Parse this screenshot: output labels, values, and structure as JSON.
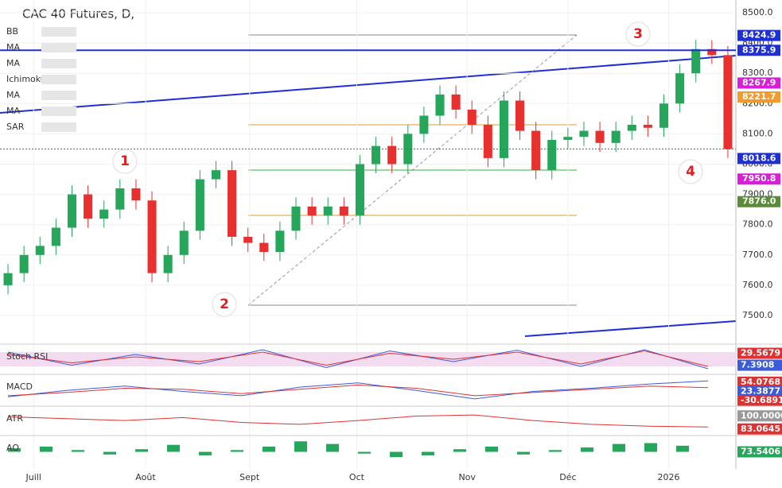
{
  "chart_data": {
    "type": "candlestick",
    "title": "CAC 40 Futures, D,",
    "indicators": [
      "BB",
      "MA",
      "MA",
      "Ichimoku",
      "MA",
      "MA",
      "SAR"
    ],
    "annotations": [
      "1",
      "2",
      "3",
      "4"
    ],
    "x": [
      0,
      1,
      2,
      3,
      4,
      5,
      6,
      7,
      8,
      9,
      10,
      11,
      12,
      13,
      14,
      15,
      16,
      17,
      18,
      19,
      20,
      21,
      22,
      23,
      24,
      25,
      26,
      27,
      28,
      29,
      30,
      31,
      32,
      33,
      34,
      35,
      36,
      37,
      38,
      39,
      40,
      41,
      42,
      43,
      44,
      45
    ],
    "open": [
      7600,
      7640,
      7700,
      7730,
      7790,
      7900,
      7820,
      7850,
      7920,
      7880,
      7640,
      7700,
      7780,
      7950,
      7980,
      7760,
      7740,
      7710,
      7780,
      7860,
      7830,
      7860,
      7830,
      8000,
      8060,
      8000,
      8100,
      8160,
      8230,
      8180,
      8130,
      8020,
      8210,
      8110,
      7980,
      8080,
      8090,
      8110,
      8070,
      8110,
      8130,
      8120,
      8200,
      8300,
      8380,
      8360
    ],
    "high": [
      7670,
      7730,
      7760,
      7820,
      7930,
      7930,
      7880,
      7950,
      7950,
      7910,
      7730,
      7810,
      7980,
      8010,
      8010,
      7790,
      7770,
      7810,
      7890,
      7890,
      7890,
      7890,
      8030,
      8090,
      8090,
      8130,
      8190,
      8260,
      8260,
      8210,
      8160,
      8240,
      8240,
      8140,
      8110,
      8120,
      8140,
      8140,
      8140,
      8160,
      8160,
      8230,
      8330,
      8410,
      8410,
      8390
    ],
    "low": [
      7570,
      7610,
      7670,
      7700,
      7760,
      7790,
      7790,
      7820,
      7850,
      7610,
      7610,
      7670,
      7750,
      7920,
      7730,
      7710,
      7680,
      7680,
      7750,
      7800,
      7800,
      7800,
      7800,
      7970,
      7970,
      7970,
      8070,
      8130,
      8150,
      8100,
      7990,
      7990,
      8080,
      7950,
      7950,
      8050,
      8060,
      8040,
      8040,
      8080,
      8090,
      8090,
      8170,
      8270,
      8330,
      8020
    ],
    "close": [
      7640,
      7700,
      7730,
      7790,
      7900,
      7820,
      7850,
      7920,
      7880,
      7640,
      7700,
      7780,
      7950,
      7980,
      7760,
      7740,
      7710,
      7780,
      7860,
      7830,
      7860,
      7830,
      8000,
      8060,
      8000,
      8100,
      8160,
      8230,
      8180,
      8130,
      8020,
      8210,
      8110,
      7980,
      8080,
      8090,
      8110,
      8070,
      8110,
      8130,
      8120,
      8200,
      8300,
      8380,
      8360,
      8050
    ],
    "up_color": "#26a65b",
    "down_color": "#e8312f",
    "xlim": [
      -0.5,
      45.5
    ],
    "xticks": [
      {
        "value": 1.6,
        "label": "Juill"
      },
      {
        "value": 8.6,
        "label": "Août"
      },
      {
        "value": 15.1,
        "label": "Sept"
      },
      {
        "value": 21.8,
        "label": "Oct"
      },
      {
        "value": 28.7,
        "label": "Nov"
      },
      {
        "value": 35.0,
        "label": "Déc"
      },
      {
        "value": 41.3,
        "label": "2026"
      }
    ],
    "ylim": [
      7426.5,
      8542
    ],
    "yticks": [
      {
        "value": 7500,
        "label": "7500.0"
      },
      {
        "value": 7600,
        "label": "7600.0"
      },
      {
        "value": 7700,
        "label": "7700.0"
      },
      {
        "value": 7800,
        "label": "7800.0"
      },
      {
        "value": 7900,
        "label": "7900.0"
      },
      {
        "value": 8000,
        "label": "8000.0"
      },
      {
        "value": 8100,
        "label": "8100.0"
      },
      {
        "value": 8200,
        "label": "8200.0"
      },
      {
        "value": 8300,
        "label": "8300.0"
      },
      {
        "value": 8400,
        "label": "8400.0"
      },
      {
        "value": 8500,
        "label": "8500.0"
      }
    ],
    "price_tags": {
      "values": [
        8424.9,
        8375.9,
        8267.9,
        8221.7,
        8018.6,
        7950.8,
        7876
      ],
      "value_labels": [
        "8424.9",
        "8375.9",
        "8267.9",
        "8221.7",
        "8018.6",
        "7950.8",
        "7876.0"
      ],
      "colors": [
        "#1e2fd6",
        "#1e2fd6",
        "#d81ed8",
        "#f29a2e",
        "#1e2fd6",
        "#d81ed8",
        "#5a8a3a"
      ]
    },
    "panels": [
      {
        "name": "Stoch RSI",
        "ylim": [
          0,
          100
        ],
        "series": [
          {
            "color": "#3b5bdb",
            "values": [
              80,
              25,
              70,
              30,
              90,
              15,
              85,
              40,
              88,
              20,
              90,
              10
            ]
          },
          {
            "color": "#e03131",
            "values": [
              70,
              35,
              60,
              40,
              80,
              25,
              75,
              50,
              80,
              30,
              85,
              20
            ]
          }
        ],
        "tags": {
          "values": [
            29.5679,
            7.3908
          ],
          "value_labels": [
            "29.5679",
            "7.3908"
          ],
          "colors": [
            "#e03131",
            "#3b5bdb"
          ]
        }
      },
      {
        "name": "MACD",
        "ylim": [
          -60,
          70
        ],
        "series": [
          {
            "color": "#3b5bdb",
            "values": [
              -20,
              10,
              30,
              5,
              -15,
              25,
              45,
              10,
              -30,
              5,
              20,
              40,
              54
            ]
          },
          {
            "color": "#e03131",
            "values": [
              -15,
              0,
              20,
              15,
              -5,
              15,
              35,
              20,
              -15,
              0,
              15,
              30,
              23
            ]
          }
        ],
        "tags": {
          "values": [
            54.0768,
            23.3877,
            -30.6891
          ],
          "value_labels": [
            "54.0768",
            "23.3877",
            "-30.6891"
          ],
          "colors": [
            "#e03131",
            "#3b5bdb",
            "#e03131"
          ]
        }
      },
      {
        "name": "ATR",
        "ylim": [
          60,
          130
        ],
        "series": [
          {
            "color": "#e03131",
            "values": [
              110,
              105,
              100,
              108,
              95,
              90,
              100,
              112,
              115,
              100,
              90,
              85,
              83
            ]
          }
        ],
        "tags": {
          "values": [
            100,
            83.0645
          ],
          "value_labels": [
            "100.0000",
            "83.0645"
          ],
          "colors": [
            "#999999",
            "#e03131"
          ]
        }
      },
      {
        "name": "AO",
        "ylim": [
          -150,
          150
        ],
        "bars": {
          "color": "#26a65b",
          "values": [
            40,
            60,
            20,
            -30,
            30,
            80,
            -40,
            20,
            60,
            120,
            90,
            -20,
            -60,
            -40,
            30,
            60,
            -30,
            20,
            50,
            90,
            100,
            70
          ]
        },
        "tags": {
          "values": [
            73.5406
          ],
          "value_labels": [
            "73.5406"
          ],
          "colors": [
            "#26a65b"
          ]
        }
      }
    ]
  }
}
